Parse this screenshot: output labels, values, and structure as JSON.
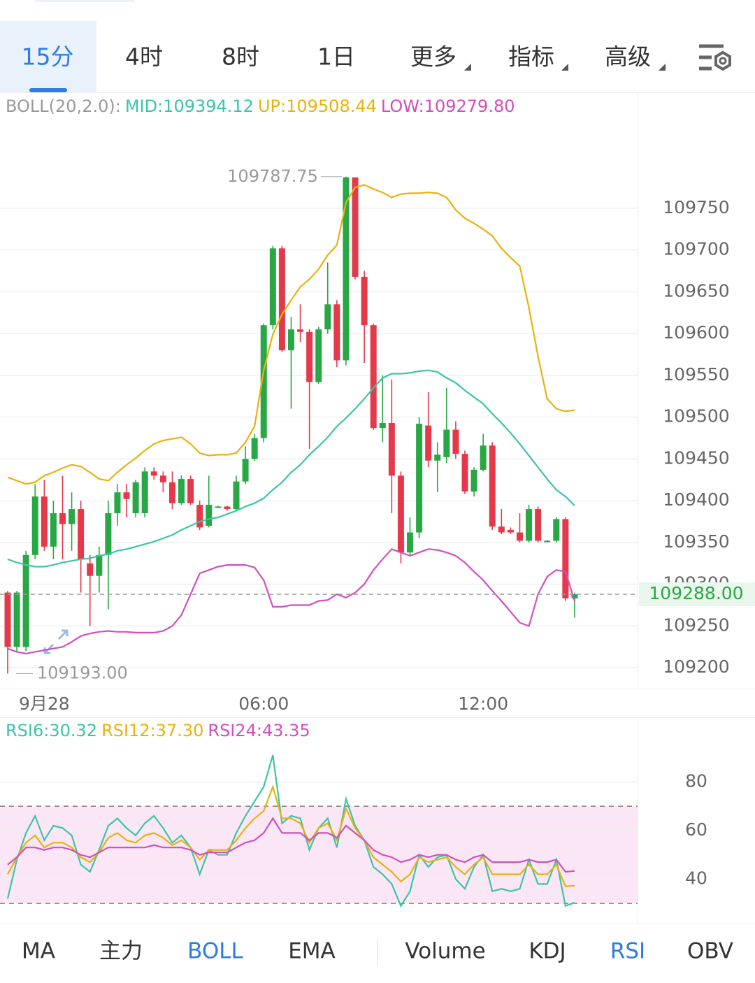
{
  "tabs": [
    "15分",
    "4时",
    "8时",
    "1日",
    "更多",
    "指标",
    "高级"
  ],
  "indicator_tabs": [
    "MA",
    "主力",
    "BOLL",
    "EMA",
    "Volume",
    "KDJ",
    "RSI",
    "OBV"
  ],
  "chart_data": [
    {
      "type": "candlestick",
      "legend_title": "BOLL(20,2.0):",
      "categories": [
        null,
        null,
        null,
        null,
        "9月28",
        null,
        null,
        null,
        null,
        null,
        null,
        null,
        null,
        null,
        null,
        null,
        null,
        null,
        null,
        null,
        null,
        null,
        null,
        null,
        null,
        null,
        null,
        null,
        "06:00",
        null,
        null,
        null,
        null,
        null,
        null,
        null,
        null,
        null,
        null,
        null,
        null,
        null,
        null,
        null,
        null,
        null,
        null,
        null,
        null,
        null,
        null,
        null,
        "12:00",
        null,
        null,
        null,
        null,
        null,
        null,
        null,
        null,
        null,
        null
      ],
      "open": [
        109290,
        109225,
        109225,
        109335,
        109405,
        109345,
        109385,
        109372,
        109390,
        109325,
        109310,
        109335,
        109385,
        109410,
        109385,
        109385,
        109435,
        109430,
        109422,
        109397,
        109426,
        109395,
        109370,
        109393,
        109393,
        109390,
        109423,
        109450,
        109475,
        109610,
        109702,
        109580,
        109605,
        109602,
        109542,
        109605,
        109635,
        109568,
        109787,
        109668,
        109610,
        109487,
        109493,
        109430,
        109338,
        109362,
        109490,
        109448,
        109452,
        109485,
        109456,
        109411,
        109437,
        109466,
        109369,
        109365,
        109362,
        109352,
        109390,
        109352,
        109352,
        109378,
        109283
      ],
      "high": [
        109292,
        109292,
        109340,
        109420,
        109425,
        109400,
        109430,
        109410,
        109400,
        109335,
        109345,
        109400,
        109420,
        109420,
        109425,
        109440,
        109440,
        109435,
        109435,
        109430,
        109430,
        109400,
        109430,
        109394,
        109394,
        109430,
        109465,
        109480,
        109612,
        109705,
        109705,
        109620,
        109635,
        109605,
        109608,
        109685,
        109640,
        109787.75,
        109787,
        109675,
        109612,
        109550,
        109545,
        109435,
        109380,
        109500,
        109530,
        109470,
        109535,
        109495,
        109460,
        109440,
        109480,
        109470,
        109390,
        109368,
        109385,
        109395,
        109393,
        109353,
        109380,
        109380,
        109290
      ],
      "low": [
        109193,
        109220,
        109220,
        109330,
        109340,
        109330,
        109330,
        109340,
        109290,
        109250,
        109290,
        109270,
        109370,
        109380,
        109380,
        109380,
        109425,
        109410,
        109390,
        109395,
        109395,
        109365,
        109368,
        109392,
        109388,
        109388,
        109420,
        109448,
        109470,
        109605,
        109578,
        109510,
        109590,
        109462,
        109540,
        109600,
        109560,
        109562,
        109665,
        109565,
        109485,
        109470,
        109385,
        109325,
        109335,
        109355,
        109440,
        109410,
        109445,
        109450,
        109408,
        109405,
        109435,
        109365,
        109360,
        109360,
        109350,
        109350,
        109350,
        109351,
        109350,
        109280,
        109260
      ],
      "close": [
        109225,
        109290,
        109335,
        109405,
        109345,
        109385,
        109372,
        109390,
        109330,
        109310,
        109335,
        109385,
        109410,
        109402,
        109422,
        109435,
        109430,
        109422,
        109397,
        109426,
        109397,
        109368,
        109395,
        109393,
        109390,
        109423,
        109450,
        109475,
        109610,
        109702,
        109580,
        109605,
        109602,
        109542,
        109605,
        109635,
        109568,
        109787,
        109668,
        109610,
        109487,
        109493,
        109430,
        109338,
        109362,
        109492,
        109448,
        109455,
        109485,
        109456,
        109411,
        109437,
        109466,
        109369,
        109362,
        109362,
        109352,
        109390,
        109352,
        109352,
        109378,
        109283,
        109288
      ],
      "up_color": "#27a844",
      "down_color": "#e3394a",
      "series": [
        {
          "name": "MID:109394.12",
          "color": "#3cc4a8",
          "values": [
            109330,
            109326,
            109323,
            109321,
            109321,
            109323,
            109326,
            109328,
            109330,
            109331,
            109334,
            109336,
            109340,
            109342,
            109345,
            109348,
            109351,
            109355,
            109359,
            109365,
            109370,
            109375,
            109378,
            109380,
            109384,
            109388,
            109393,
            109397,
            109403,
            109413,
            109422,
            109434,
            109443,
            109455,
            109465,
            109476,
            109489,
            109499,
            109510,
            109522,
            109535,
            109547,
            109552,
            109552,
            109553,
            109555,
            109556,
            109554,
            109547,
            109541,
            109532,
            109524,
            109516,
            109504,
            109493,
            109481,
            109468,
            109454,
            109440,
            109426,
            109413,
            109405,
            109394.12
          ]
        },
        {
          "name": "UP:109508.44",
          "color": "#e8b20c",
          "values": [
            109428,
            109424,
            109420,
            109422,
            109430,
            109434,
            109439,
            109443,
            109441,
            109434,
            109426,
            109424,
            109434,
            109443,
            109451,
            109460,
            109468,
            109472,
            109474,
            109476,
            109468,
            109457,
            109454,
            109455,
            109455,
            109457,
            109470,
            109489,
            109556,
            109599,
            109623,
            109640,
            109656,
            109665,
            109677,
            109694,
            109706,
            109757,
            109775,
            109778,
            109773,
            109769,
            109763,
            109767,
            109768,
            109768,
            109769,
            109768,
            109763,
            109748,
            109738,
            109732,
            109725,
            109717,
            109702,
            109691,
            109681,
            109631,
            109573,
            109522,
            109510,
            109507,
            109508.44
          ]
        },
        {
          "name": "LOW:109279.80",
          "color": "#d24ec0",
          "values": [
            109223,
            109219,
            109217,
            109219,
            109221,
            109223,
            109225,
            109231,
            109238,
            109241,
            109243,
            109244,
            109243,
            109243,
            109242,
            109242,
            109242,
            109244,
            109250,
            109263,
            109288,
            109313,
            109317,
            109321,
            109323,
            109323,
            109323,
            109320,
            109305,
            109273,
            109273,
            109275,
            109275,
            109275,
            109280,
            109281,
            109288,
            109284,
            109290,
            109300,
            109317,
            109330,
            109342,
            109338,
            109334,
            109338,
            109342,
            109341,
            109338,
            109334,
            109326,
            109315,
            109305,
            109292,
            109280,
            109267,
            109254,
            109250,
            109288,
            109309,
            109317,
            109315,
            109279.8
          ]
        }
      ],
      "ylim": [
        109175,
        109888
      ],
      "yticks": [
        109200,
        109250,
        109300,
        109350,
        109400,
        109450,
        109500,
        109550,
        109600,
        109650,
        109700,
        109750
      ],
      "grid": true,
      "max_label": "109787.75",
      "min_label": "109193.00",
      "last_price_label": "109288.00"
    },
    {
      "type": "line",
      "series": [
        {
          "name": "RSI6:30.32",
          "color": "#3cc4a8",
          "values": [
            32,
            48,
            59,
            66,
            56,
            62,
            61,
            58,
            46,
            43,
            52,
            62,
            65,
            61,
            58,
            63,
            66,
            61,
            55,
            58,
            53,
            42,
            52,
            50,
            50,
            59,
            66,
            72,
            78,
            91,
            63,
            66,
            65,
            52,
            61,
            65,
            53,
            73,
            62,
            56,
            45,
            42,
            38,
            29,
            35,
            50,
            45,
            49,
            50,
            40,
            36,
            45,
            50,
            35,
            36,
            35,
            36,
            48,
            38,
            38,
            48,
            29,
            30.32
          ]
        },
        {
          "name": "RSI12:37.30",
          "color": "#e8b20c",
          "values": [
            42,
            49,
            55,
            58,
            53,
            55,
            55,
            53,
            49,
            47,
            51,
            57,
            59,
            56,
            55,
            58,
            59,
            57,
            54,
            56,
            53,
            48,
            52,
            52,
            52,
            56,
            61,
            65,
            68,
            78,
            65,
            65,
            63,
            55,
            61,
            63,
            56,
            69,
            61,
            56,
            49,
            46,
            43,
            39,
            42,
            49,
            47,
            48,
            49,
            45,
            42,
            46,
            49,
            42,
            42,
            42,
            42,
            46,
            42,
            42,
            46,
            37,
            37.3
          ]
        },
        {
          "name": "RSI24:43.35",
          "color": "#d24ec0",
          "values": [
            46,
            49,
            53,
            53,
            52,
            53,
            53,
            52,
            50,
            49,
            51,
            53,
            53,
            53,
            53,
            53,
            54,
            53,
            53,
            53,
            52,
            50,
            51,
            51,
            51,
            53,
            55,
            56,
            59,
            65,
            59,
            59,
            59,
            56,
            59,
            59,
            57,
            62,
            59,
            56,
            52,
            50,
            49,
            47,
            48,
            50,
            49,
            50,
            50,
            48,
            47,
            49,
            50,
            47,
            47,
            47,
            47,
            48,
            47,
            47,
            48,
            43,
            43.35
          ]
        }
      ],
      "ylim": [
        22,
        106
      ],
      "yticks": [
        40,
        60,
        80
      ],
      "bands": [
        30,
        70
      ]
    }
  ]
}
